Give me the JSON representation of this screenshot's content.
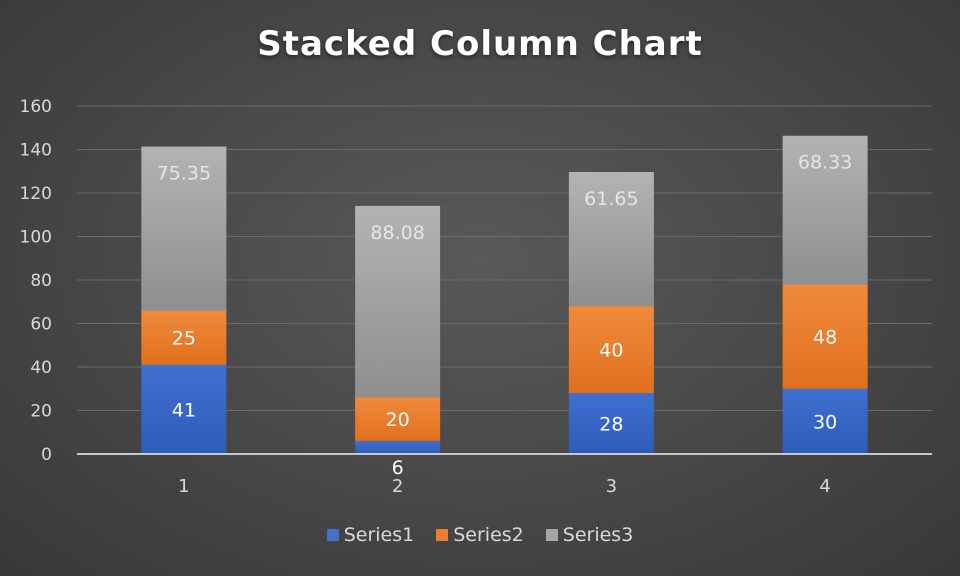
{
  "chart_data": {
    "type": "bar",
    "stacked": true,
    "title": "Stacked Column Chart",
    "xlabel": "",
    "ylabel": "",
    "categories": [
      "1",
      "2",
      "3",
      "4"
    ],
    "ylim": [
      0,
      160
    ],
    "yticks": [
      0,
      20,
      40,
      60,
      80,
      100,
      120,
      140,
      160
    ],
    "grid": true,
    "legend_position": "bottom",
    "series": [
      {
        "name": "Series1",
        "values": [
          41,
          6,
          28,
          30
        ],
        "labels": [
          "41",
          "6",
          "28",
          "30"
        ],
        "color": "#4472C4"
      },
      {
        "name": "Series2",
        "values": [
          25,
          20,
          40,
          48
        ],
        "labels": [
          "25",
          "20",
          "40",
          "48"
        ],
        "color": "#ED7D31"
      },
      {
        "name": "Series3",
        "values": [
          75.35,
          88.08,
          61.65,
          68.33
        ],
        "labels": [
          "75.35",
          "88.08",
          "61.65",
          "68.33"
        ],
        "color": "#A5A5A5"
      }
    ]
  }
}
